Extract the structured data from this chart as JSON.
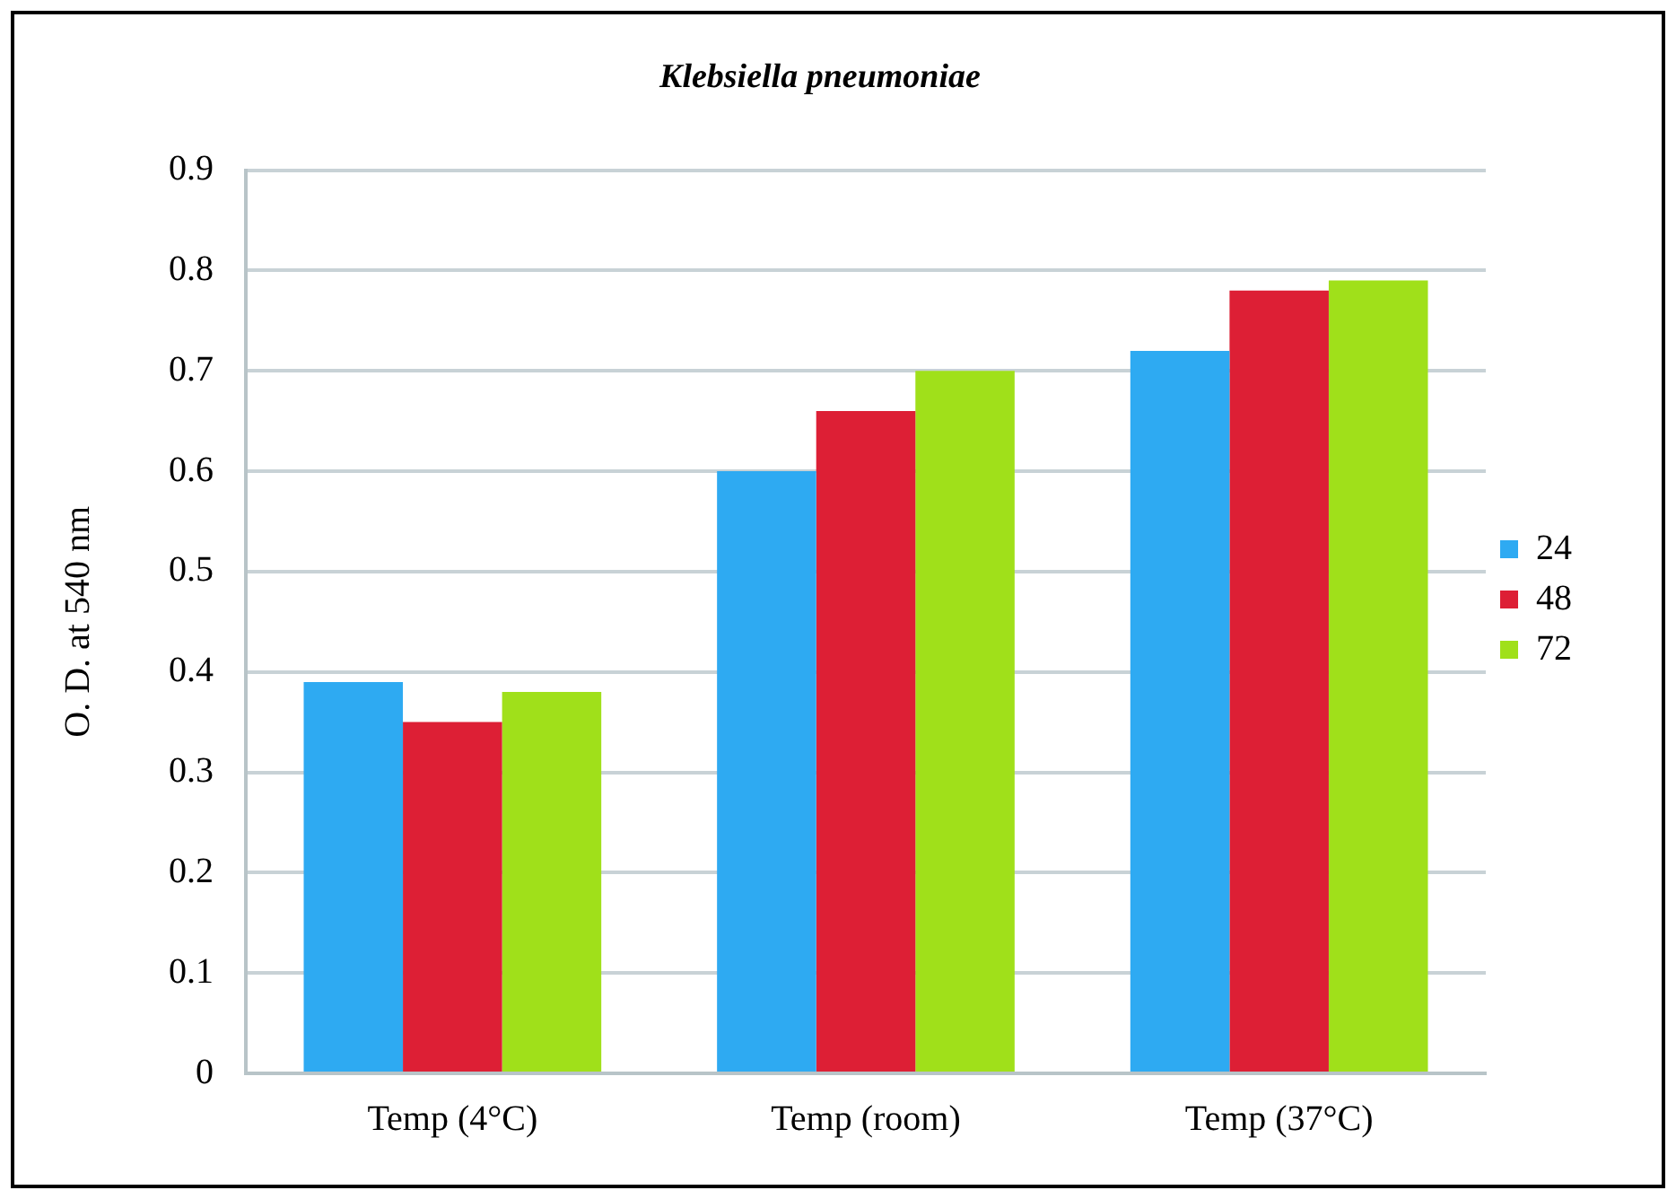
{
  "chart_data": {
    "type": "bar",
    "title": "Klebsiella pneumoniae",
    "ylabel": "O. D. at 540 nm",
    "categories": [
      "Temp (4°C)",
      "Temp (room)",
      "Temp (37°C)"
    ],
    "series": [
      {
        "name": "24",
        "color": "#2eaaf2",
        "values": [
          0.39,
          0.6,
          0.72
        ]
      },
      {
        "name": "48",
        "color": "#dd1f35",
        "values": [
          0.35,
          0.66,
          0.78
        ]
      },
      {
        "name": "72",
        "color": "#a0e01a",
        "values": [
          0.38,
          0.7,
          0.79
        ]
      }
    ],
    "ylim": [
      0,
      0.9
    ],
    "yticks": [
      0,
      0.1,
      0.2,
      0.3,
      0.4,
      0.5,
      0.6,
      0.7,
      0.8,
      0.9
    ],
    "grid": "y",
    "legend": "right"
  }
}
